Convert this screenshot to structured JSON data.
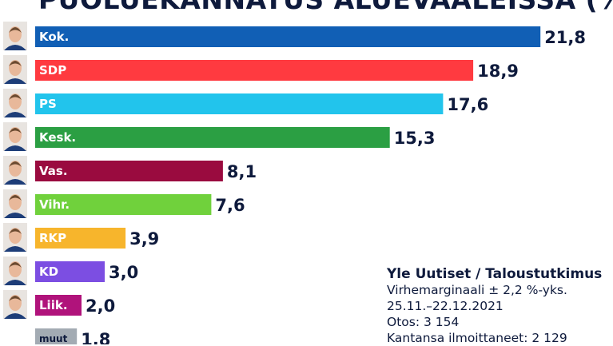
{
  "chart_data": {
    "type": "bar",
    "orientation": "horizontal",
    "title": "PUOLUEKANNATUS ALUEVAALEISSA (%)",
    "categories": [
      "Kok.",
      "SDP",
      "PS",
      "Kesk.",
      "Vas.",
      "Vihr.",
      "RKP",
      "KD",
      "Liik.",
      "muut"
    ],
    "values": [
      21.8,
      18.9,
      17.6,
      15.3,
      8.1,
      7.6,
      3.9,
      3.0,
      2.0,
      1.8
    ],
    "value_labels": [
      "21,8",
      "18,9",
      "17,6",
      "15,3",
      "8,1",
      "7,6",
      "3,9",
      "3,0",
      "2,0",
      "1,8"
    ],
    "colors": [
      "#115fb5",
      "#ff3a40",
      "#22c4ec",
      "#2b9f43",
      "#9a0b3f",
      "#70d13c",
      "#f7b52c",
      "#7c4ee2",
      "#b0137b",
      "#a3abb3"
    ],
    "label_colors": [
      "#ffffff",
      "#ffffff",
      "#ffffff",
      "#ffffff",
      "#ffffff",
      "#ffffff",
      "#ffffff",
      "#ffffff",
      "#ffffff",
      "#0e1a3c"
    ],
    "has_portrait": [
      true,
      true,
      true,
      true,
      true,
      true,
      true,
      true,
      true,
      false
    ],
    "xlim": [
      0,
      22
    ],
    "grid": false,
    "legend": "none"
  },
  "source": {
    "publisher": "Yle Uutiset / Taloustutkimus",
    "margin": "Virhemarginaali ± 2,2 %-yks.",
    "dates": "25.11.–22.12.2021",
    "sample": "Otos: 3 154",
    "stated": "Kantansa ilmoittaneet: 2 129"
  }
}
